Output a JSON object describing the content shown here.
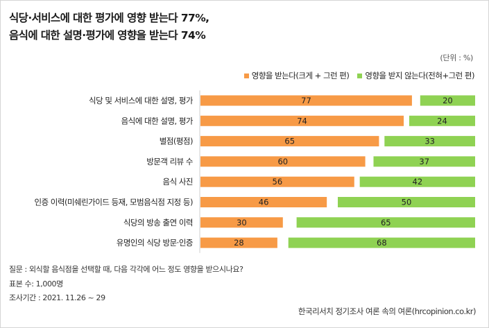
{
  "title_lines": [
    "식당·서비스에 대한 평가에 영향 받는다 77%,",
    "음식에 대한 설명·평가에 영향을 받는다 74%"
  ],
  "unit": "(단위 : %)",
  "legend": [
    {
      "label": "영향을 받는다(크게 + 그런 편)",
      "color": "#f79a46"
    },
    {
      "label": "영향을 받지 않는다(전혀+그런 편)",
      "color": "#8fd253"
    }
  ],
  "chart_data": {
    "type": "bar",
    "orientation": "horizontal",
    "stacked": true,
    "categories": [
      "식당 및 서비스에 대한 설명, 평가",
      "음식에 대한 설명, 평가",
      "별점(평점)",
      "방문객 리뷰 수",
      "음식 사진",
      "인증 이력(미쉐린가이드 등재, 모범음식점 지정 등)",
      "식당의 방송 출연 이력",
      "유명인의 식당 방문·인증"
    ],
    "series": [
      {
        "name": "영향을 받는다(크게 + 그런 편)",
        "values": [
          77,
          74,
          65,
          60,
          56,
          46,
          30,
          28
        ]
      },
      {
        "name": "영향을 받지 않는다(전혀+그런 편)",
        "values": [
          20,
          24,
          33,
          37,
          42,
          50,
          65,
          68
        ]
      }
    ],
    "xlim": [
      0,
      100
    ],
    "grid": false,
    "legend_position": "top-right"
  },
  "notes": [
    "질문 : 외식할 음식점을 선택할 때, 다음 각각에 어느 정도 영향을 받으시나요?",
    "표본 수: 1,000명",
    "조사기간 : 2021. 11.26 ~ 29"
  ],
  "source": "한국리서치 정기조사 여론 속의 여론(hrcopinion.co.kr)"
}
